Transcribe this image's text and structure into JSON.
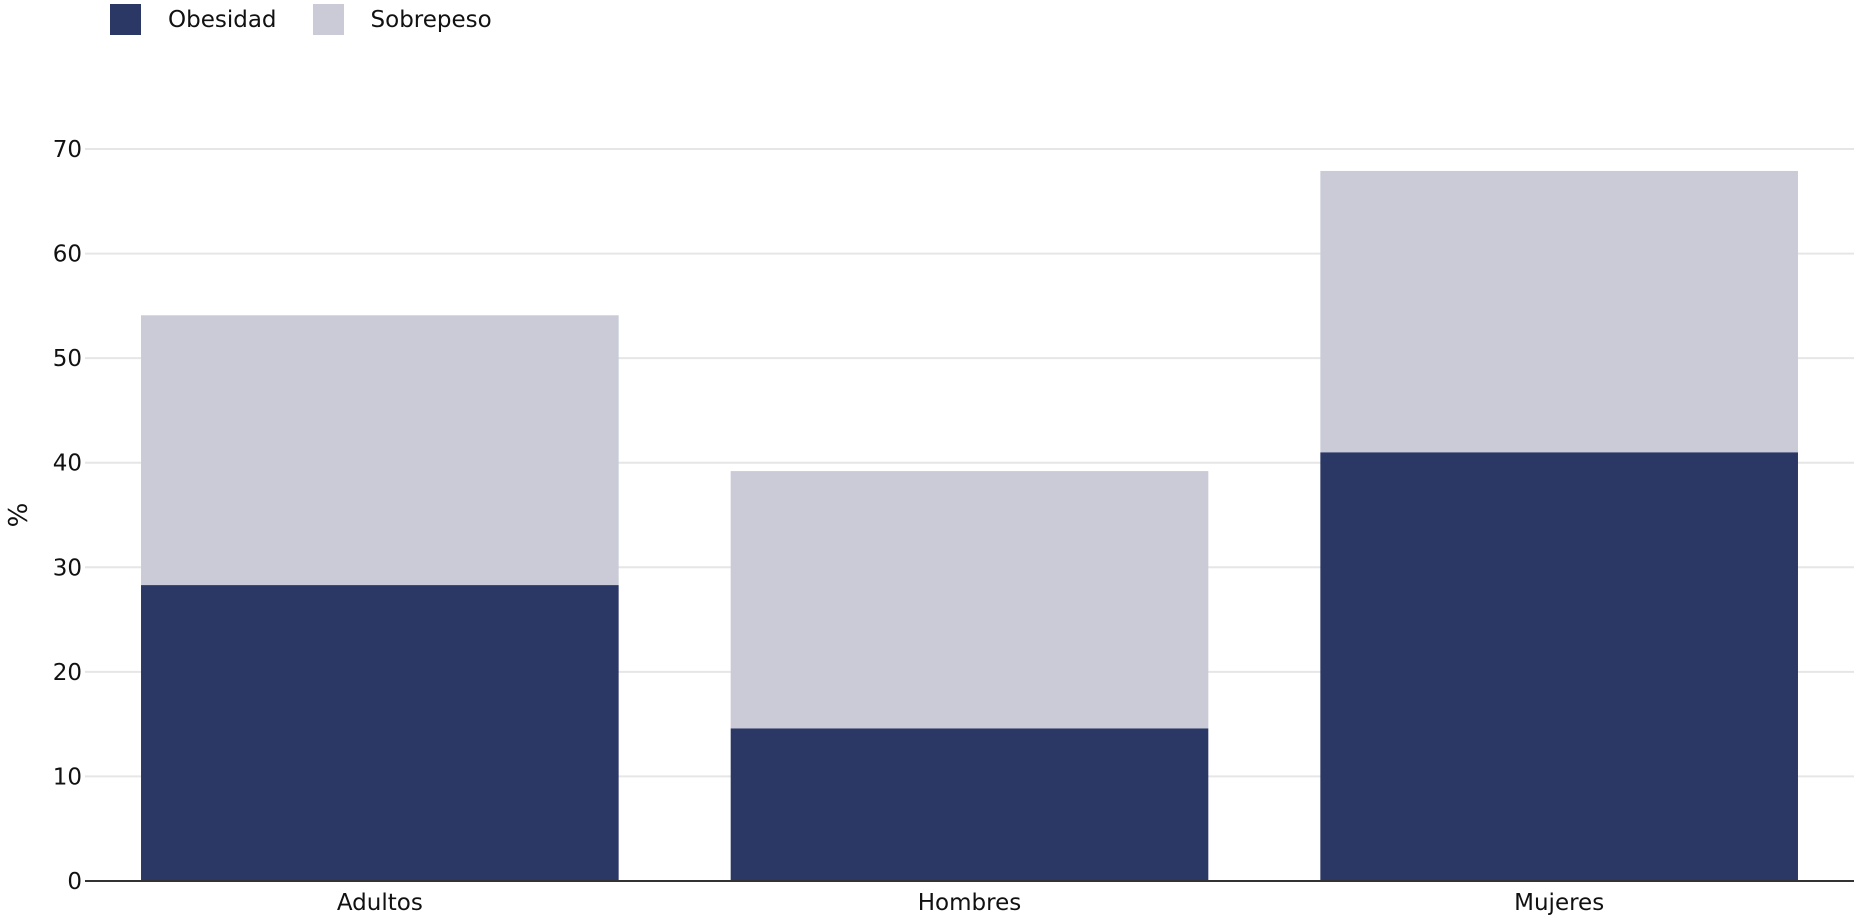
{
  "chart_data": {
    "type": "bar",
    "stacked": true,
    "categories": [
      "Adultos",
      "Hombres",
      "Mujeres"
    ],
    "series": [
      {
        "name": "Obesidad",
        "color": "#2b3765",
        "values": [
          28.3,
          14.6,
          41.0
        ]
      },
      {
        "name": "Sobrepeso",
        "color": "#cacbd7",
        "values": [
          25.8,
          24.6,
          26.9
        ]
      }
    ],
    "ylabel": "%",
    "xlabel": "",
    "ylim": [
      0,
      70
    ],
    "yticks": [
      0,
      10,
      20,
      30,
      40,
      50,
      60,
      70
    ],
    "grid": true,
    "legend_position": "top-left"
  }
}
